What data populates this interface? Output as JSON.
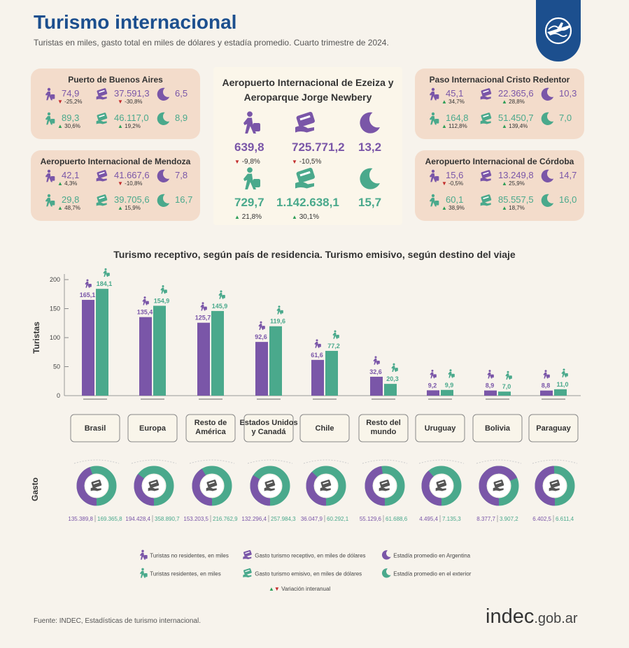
{
  "header": {
    "title": "Turismo internacional",
    "subtitle": "Turistas en miles, gasto total en miles de dólares y estadía promedio. Cuarto trimestre de 2024."
  },
  "cards": [
    {
      "id": "buenos-aires",
      "title": "Puerto de Buenos Aires",
      "r": {
        "turistas": "74,9",
        "turistas_chg": "-25,2%",
        "turistas_dir": "down",
        "gasto": "37.591,3",
        "gasto_chg": "-30,8%",
        "gasto_dir": "down",
        "estadia": "6,5"
      },
      "e": {
        "turistas": "89,3",
        "turistas_chg": "30,6%",
        "turistas_dir": "up",
        "gasto": "46.117,0",
        "gasto_chg": "19,2%",
        "gasto_dir": "up",
        "estadia": "8,9"
      }
    },
    {
      "id": "mendoza",
      "title": "Aeropuerto Internacional de Mendoza",
      "r": {
        "turistas": "42,1",
        "turistas_chg": "4,3%",
        "turistas_dir": "up",
        "gasto": "41.667,6",
        "gasto_chg": "-10,8%",
        "gasto_dir": "down",
        "estadia": "7,8"
      },
      "e": {
        "turistas": "29,8",
        "turistas_chg": "48,7%",
        "turistas_dir": "up",
        "gasto": "39.705,6",
        "gasto_chg": "15,9%",
        "gasto_dir": "up",
        "estadia": "16,7"
      }
    },
    {
      "id": "cristo-redentor",
      "title": "Paso Internacional Cristo Redentor",
      "r": {
        "turistas": "45,1",
        "turistas_chg": "34,7%",
        "turistas_dir": "up",
        "gasto": "22.365,6",
        "gasto_chg": "28,8%",
        "gasto_dir": "up",
        "estadia": "10,3"
      },
      "e": {
        "turistas": "164,8",
        "turistas_chg": "112,8%",
        "turistas_dir": "up",
        "gasto": "51.450,7",
        "gasto_chg": "139,4%",
        "gasto_dir": "up",
        "estadia": "7,0"
      }
    },
    {
      "id": "cordoba",
      "title": "Aeropuerto Internacional de Córdoba",
      "r": {
        "turistas": "15,6",
        "turistas_chg": "-0,5%",
        "turistas_dir": "down",
        "gasto": "13.249,8",
        "gasto_chg": "25,9%",
        "gasto_dir": "up",
        "estadia": "14,7"
      },
      "e": {
        "turistas": "60,1",
        "turistas_chg": "38,9%",
        "turistas_dir": "up",
        "gasto": "85.557,5",
        "gasto_chg": "18,7%",
        "gasto_dir": "up",
        "estadia": "16,0"
      }
    }
  ],
  "center": {
    "title_line1": "Aeropuerto Internacional de Ezeiza y",
    "title_line2": "Aeroparque Jorge Newbery",
    "r": {
      "turistas": "639,8",
      "turistas_chg": "-9,8%",
      "gasto": "725.771,2",
      "gasto_chg": "-10,5%",
      "estadia": "13,2"
    },
    "e": {
      "turistas": "729,7",
      "turistas_chg": "21,8%",
      "gasto": "1.142.638,1",
      "gasto_chg": "30,1%",
      "estadia": "15,7"
    }
  },
  "chart_title": "Turismo receptivo, según país de residencia. Turismo emisivo, según destino del viaje",
  "chart_data": {
    "type": "bar",
    "ylabel": "Turistas",
    "ylim": [
      0,
      200
    ],
    "yticks": [
      0,
      50,
      100,
      150,
      200
    ],
    "categories": [
      [
        "Brasil"
      ],
      [
        "Europa"
      ],
      [
        "Resto de",
        "América"
      ],
      [
        "Estados Unidos",
        "y Canadá"
      ],
      [
        "Chile"
      ],
      [
        "Resto del",
        "mundo"
      ],
      [
        "Uruguay"
      ],
      [
        "Bolivia"
      ],
      [
        "Paraguay"
      ]
    ],
    "series": [
      {
        "name": "Turistas no residentes, en miles",
        "values": [
          165.1,
          135.4,
          125.7,
          92.6,
          61.6,
          32.6,
          9.2,
          8.9,
          8.8
        ],
        "labels": [
          "165,1",
          "135,4",
          "125,7",
          "92,6",
          "61,6",
          "32,6",
          "9,2",
          "8,9",
          "8,8"
        ]
      },
      {
        "name": "Turistas residentes, en miles",
        "values": [
          184.1,
          154.9,
          145.9,
          119.6,
          77.2,
          20.3,
          9.9,
          7.0,
          11.0
        ],
        "labels": [
          "184,1",
          "154,9",
          "145,9",
          "119,6",
          "77,2",
          "20,3",
          "9,9",
          "7,0",
          "11,0"
        ]
      }
    ],
    "gasto_label": "Gasto",
    "gasto": {
      "receptivo": [
        135389.8,
        194428.4,
        153203.5,
        132296.4,
        36047.9,
        55129.6,
        4495.4,
        8377.7,
        6402.5
      ],
      "emisivo": [
        169365.8,
        358890.7,
        216762.9,
        257984.3,
        60292.1,
        61688.6,
        7135.3,
        3907.2,
        6611.4
      ],
      "receptivo_labels": [
        "135.389,8",
        "194.428,4",
        "153.203,5",
        "132.296,4",
        "36.047,9",
        "55.129,6",
        "4.495,4",
        "8.377,7",
        "6.402,5"
      ],
      "emisivo_labels": [
        "169.365,8",
        "358.890,7",
        "216.762,9",
        "257.984,3",
        "60.292,1",
        "61.688,6",
        "7.135,3",
        "3.907,2",
        "6.611,4"
      ]
    }
  },
  "legend": {
    "turistas_nr": "Turistas no residentes, en miles",
    "turistas_r": "Turistas residentes, en miles",
    "gasto_r": "Gasto turismo receptivo, en miles de dólares",
    "gasto_e": "Gasto turismo emisivo, en miles de dólares",
    "estadia_ar": "Estadía promedio en Argentina",
    "estadia_ext": "Estadía promedio en el exterior",
    "variacion": "Variación interanual"
  },
  "footer": {
    "source": "Fuente: INDEC, Estadísticas de turismo internacional.",
    "logo_main": "indec",
    "logo_domain": ".gob.ar"
  },
  "colors": {
    "purple": "#7a56a8",
    "green": "#4aa98c",
    "card": "#f3dccb",
    "title": "#1c4f8e",
    "up": "#2e9e57",
    "down": "#c22c2c"
  }
}
